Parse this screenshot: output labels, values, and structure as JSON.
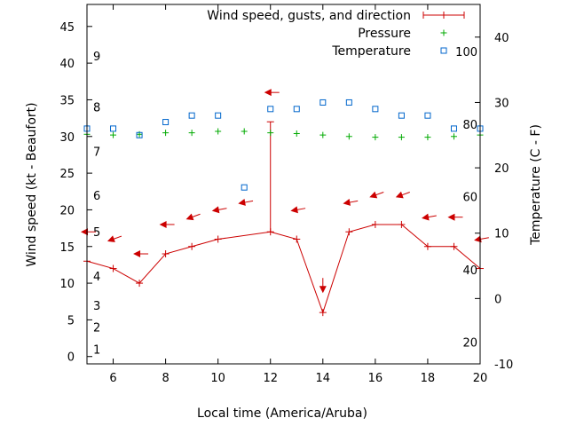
{
  "chart_data": {
    "type": "line",
    "xlabel": "Local time (America/Aruba)",
    "ylabel_left": "Wind speed (kt - Beaufort)",
    "ylabel_right": "Temperature (C - F)",
    "xlim": [
      5,
      20
    ],
    "xticks": [
      "6",
      "8",
      "10",
      "12",
      "14",
      "16",
      "18",
      "20"
    ],
    "ylim_left": [
      -1,
      48
    ],
    "yticks_left": [
      "0",
      "5",
      "10",
      "15",
      "20",
      "25",
      "30",
      "35",
      "40",
      "45"
    ],
    "ylim_right": [
      -10,
      45
    ],
    "yticks_right": [
      "-10",
      "0",
      "10",
      "20",
      "30",
      "40"
    ],
    "beaufort_labels": [
      {
        "text": "1",
        "y": 1
      },
      {
        "text": "2",
        "y": 4
      },
      {
        "text": "3",
        "y": 7
      },
      {
        "text": "4",
        "y": 11
      },
      {
        "text": "5",
        "y": 17
      },
      {
        "text": "6",
        "y": 22
      },
      {
        "text": "7",
        "y": 28
      },
      {
        "text": "8",
        "y": 34
      },
      {
        "text": "9",
        "y": 41
      }
    ],
    "fahrenheit_labels": [
      {
        "text": "20",
        "temp": -6.7
      },
      {
        "text": "40",
        "temp": 4.4
      },
      {
        "text": "60",
        "temp": 15.6
      },
      {
        "text": "80",
        "temp": 26.7
      },
      {
        "text": "100",
        "temp": 37.8
      }
    ],
    "legend": {
      "placement": "top-right",
      "entries": [
        "Wind speed, gusts, and direction",
        "Pressure",
        "Temperature"
      ]
    },
    "colors": {
      "wind": "#cc0000",
      "pressure": "#00aa00",
      "temperature": "#0066cc",
      "axis": "#000000"
    },
    "series": [
      {
        "name": "Wind speed, gusts, and direction",
        "x": [
          5,
          6,
          7,
          8,
          9,
          10,
          12,
          13,
          14,
          15,
          16,
          17,
          18,
          19,
          20
        ],
        "values": [
          13,
          12,
          10,
          14,
          15,
          16,
          17,
          16,
          6,
          17,
          18,
          18,
          15,
          15,
          12
        ],
        "gust": {
          "x": 12,
          "value": 32
        },
        "direction_arrows": [
          {
            "x": 5,
            "y": 17,
            "angle": 90
          },
          {
            "x": 6,
            "y": 16,
            "angle": 70
          },
          {
            "x": 7,
            "y": 14,
            "angle": 90
          },
          {
            "x": 8,
            "y": 18,
            "angle": 90
          },
          {
            "x": 9,
            "y": 19,
            "angle": 70
          },
          {
            "x": 10,
            "y": 20,
            "angle": 80
          },
          {
            "x": 11,
            "y": 21,
            "angle": 80
          },
          {
            "x": 12,
            "y": 36,
            "angle": 90
          },
          {
            "x": 13,
            "y": 20,
            "angle": 80
          },
          {
            "x": 14,
            "y": 9.5,
            "angle": 0
          },
          {
            "x": 15,
            "y": 21,
            "angle": 80
          },
          {
            "x": 16,
            "y": 22,
            "angle": 70
          },
          {
            "x": 17,
            "y": 22,
            "angle": 70
          },
          {
            "x": 18,
            "y": 19,
            "angle": 80
          },
          {
            "x": 19,
            "y": 19,
            "angle": 90
          },
          {
            "x": 20,
            "y": 16,
            "angle": 80
          }
        ]
      },
      {
        "name": "Pressure",
        "x": [
          5,
          6,
          7,
          8,
          9,
          10,
          11,
          12,
          13,
          14,
          15,
          16,
          17,
          18,
          19,
          20
        ],
        "values": [
          30.3,
          30.2,
          30.3,
          30.5,
          30.5,
          30.7,
          30.7,
          30.5,
          30.4,
          30.2,
          30.0,
          29.9,
          29.9,
          29.9,
          30.0,
          30.2
        ]
      },
      {
        "name": "Temperature",
        "x": [
          5,
          6,
          7,
          8,
          9,
          10,
          11,
          12,
          13,
          14,
          15,
          16,
          17,
          18,
          19,
          20
        ],
        "values": [
          26,
          26,
          25,
          27,
          28,
          28,
          17,
          29,
          29,
          30,
          30,
          29,
          28,
          28,
          26,
          26
        ]
      }
    ]
  }
}
